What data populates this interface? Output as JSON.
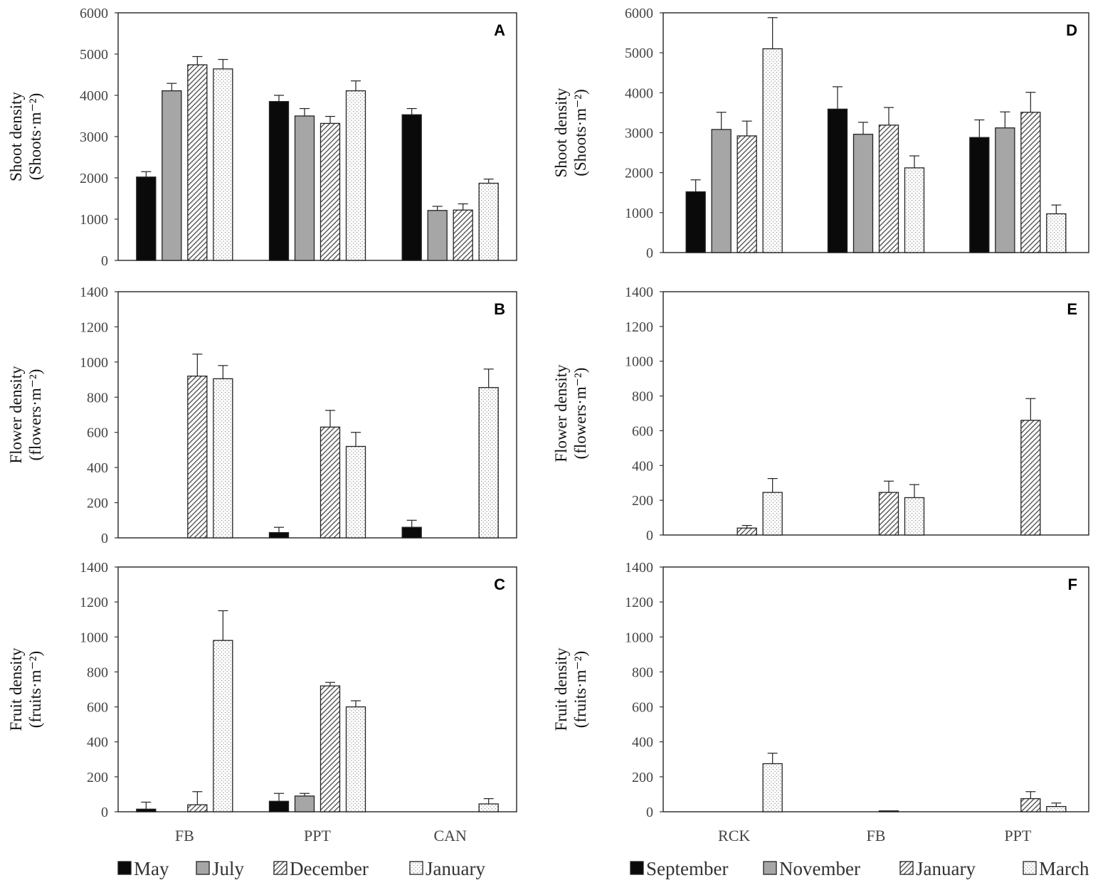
{
  "chart_data": [
    {
      "panel": "A",
      "type": "bar",
      "ylabel_line1": "Shoot density",
      "ylabel_line2": "(Shoots·m⁻²)",
      "ylim": [
        0,
        6000
      ],
      "yticks": [
        0,
        1000,
        2000,
        3000,
        4000,
        5000,
        6000
      ],
      "categories": [
        "FB",
        "PPT",
        "CAN"
      ],
      "show_categories": false,
      "series": [
        {
          "name": "May",
          "values": [
            2020,
            3850,
            3530
          ],
          "errors": [
            130,
            150,
            150
          ]
        },
        {
          "name": "July",
          "values": [
            4110,
            3500,
            1210
          ],
          "errors": [
            180,
            180,
            100
          ]
        },
        {
          "name": "December",
          "values": [
            4740,
            3320,
            1220
          ],
          "errors": [
            200,
            170,
            150
          ]
        },
        {
          "name": "January",
          "values": [
            4640,
            4110,
            1870
          ],
          "errors": [
            230,
            240,
            100
          ]
        }
      ]
    },
    {
      "panel": "B",
      "type": "bar",
      "ylabel_line1": "Flower density",
      "ylabel_line2": "(flowers·m⁻²)",
      "ylim": [
        0,
        1400
      ],
      "yticks": [
        0,
        200,
        400,
        600,
        800,
        1000,
        1200,
        1400
      ],
      "categories": [
        "FB",
        "PPT",
        "CAN"
      ],
      "show_categories": false,
      "series": [
        {
          "name": "May",
          "values": [
            0,
            30,
            60
          ],
          "errors": [
            0,
            30,
            40
          ]
        },
        {
          "name": "July",
          "values": [
            0,
            0,
            0
          ],
          "errors": [
            0,
            0,
            0
          ]
        },
        {
          "name": "December",
          "values": [
            920,
            630,
            0
          ],
          "errors": [
            125,
            95,
            0
          ]
        },
        {
          "name": "January",
          "values": [
            905,
            520,
            855
          ],
          "errors": [
            75,
            80,
            105
          ]
        }
      ]
    },
    {
      "panel": "C",
      "type": "bar",
      "ylabel_line1": "Fruit density",
      "ylabel_line2": "(fruits·m⁻²)",
      "ylim": [
        0,
        1400
      ],
      "yticks": [
        0,
        200,
        400,
        600,
        800,
        1000,
        1200,
        1400
      ],
      "categories": [
        "FB",
        "PPT",
        "CAN"
      ],
      "show_categories": true,
      "series": [
        {
          "name": "May",
          "values": [
            15,
            60,
            0
          ],
          "errors": [
            40,
            45,
            0
          ]
        },
        {
          "name": "July",
          "values": [
            0,
            90,
            0
          ],
          "errors": [
            0,
            15,
            0
          ]
        },
        {
          "name": "December",
          "values": [
            40,
            720,
            0
          ],
          "errors": [
            75,
            20,
            0
          ]
        },
        {
          "name": "January",
          "values": [
            980,
            600,
            45
          ],
          "errors": [
            170,
            35,
            30
          ]
        }
      ]
    },
    {
      "panel": "D",
      "type": "bar",
      "ylabel_line1": "Shoot density",
      "ylabel_line2": "(Shoots·m⁻²)",
      "ylim": [
        0,
        6000
      ],
      "yticks": [
        0,
        1000,
        2000,
        3000,
        4000,
        5000,
        6000
      ],
      "categories": [
        "RCK",
        "FB",
        "PPT"
      ],
      "show_categories": false,
      "series": [
        {
          "name": "September",
          "values": [
            1520,
            3590,
            2880
          ],
          "errors": [
            300,
            560,
            440
          ]
        },
        {
          "name": "November",
          "values": [
            3080,
            2960,
            3120
          ],
          "errors": [
            430,
            300,
            400
          ]
        },
        {
          "name": "January",
          "values": [
            2920,
            3190,
            3510
          ],
          "errors": [
            370,
            440,
            500
          ]
        },
        {
          "name": "March",
          "values": [
            5100,
            2120,
            970
          ],
          "errors": [
            780,
            300,
            220
          ]
        }
      ]
    },
    {
      "panel": "E",
      "type": "bar",
      "ylabel_line1": "Flower density",
      "ylabel_line2": "(flowers·m⁻²)",
      "ylim": [
        0,
        1400
      ],
      "yticks": [
        0,
        200,
        400,
        600,
        800,
        1000,
        1200,
        1400
      ],
      "categories": [
        "RCK",
        "FB",
        "PPT"
      ],
      "show_categories": false,
      "series": [
        {
          "name": "September",
          "values": [
            0,
            0,
            0
          ],
          "errors": [
            0,
            0,
            0
          ]
        },
        {
          "name": "November",
          "values": [
            0,
            0,
            0
          ],
          "errors": [
            0,
            0,
            0
          ]
        },
        {
          "name": "January",
          "values": [
            40,
            245,
            660
          ],
          "errors": [
            15,
            65,
            125
          ]
        },
        {
          "name": "March",
          "values": [
            245,
            215,
            0
          ],
          "errors": [
            80,
            75,
            0
          ]
        }
      ]
    },
    {
      "panel": "F",
      "type": "bar",
      "ylabel_line1": "Fruit density",
      "ylabel_line2": "(fruits·m⁻²)",
      "ylim": [
        0,
        1400
      ],
      "yticks": [
        0,
        200,
        400,
        600,
        800,
        1000,
        1200,
        1400
      ],
      "categories": [
        "RCK",
        "FB",
        "PPT"
      ],
      "show_categories": true,
      "series": [
        {
          "name": "September",
          "values": [
            0,
            0,
            0
          ],
          "errors": [
            0,
            0,
            0
          ]
        },
        {
          "name": "November",
          "values": [
            0,
            0,
            0
          ],
          "errors": [
            0,
            0,
            0
          ]
        },
        {
          "name": "January",
          "values": [
            0,
            5,
            75
          ],
          "errors": [
            0,
            0,
            40
          ]
        },
        {
          "name": "March",
          "values": [
            275,
            0,
            30
          ],
          "errors": [
            60,
            0,
            20
          ]
        }
      ]
    }
  ],
  "legends": [
    {
      "entries": [
        "May",
        "July",
        "December",
        "January"
      ]
    },
    {
      "entries": [
        "September",
        "November",
        "January",
        "March"
      ]
    }
  ],
  "series_styles": [
    "solid-black",
    "solid-gray",
    "diagonal-hatch",
    "dotted"
  ],
  "colors": {
    "solid_black": "#0a0a0a",
    "solid_gray": "#a6a6a6",
    "stroke": "#222222",
    "axis": "#333333"
  }
}
